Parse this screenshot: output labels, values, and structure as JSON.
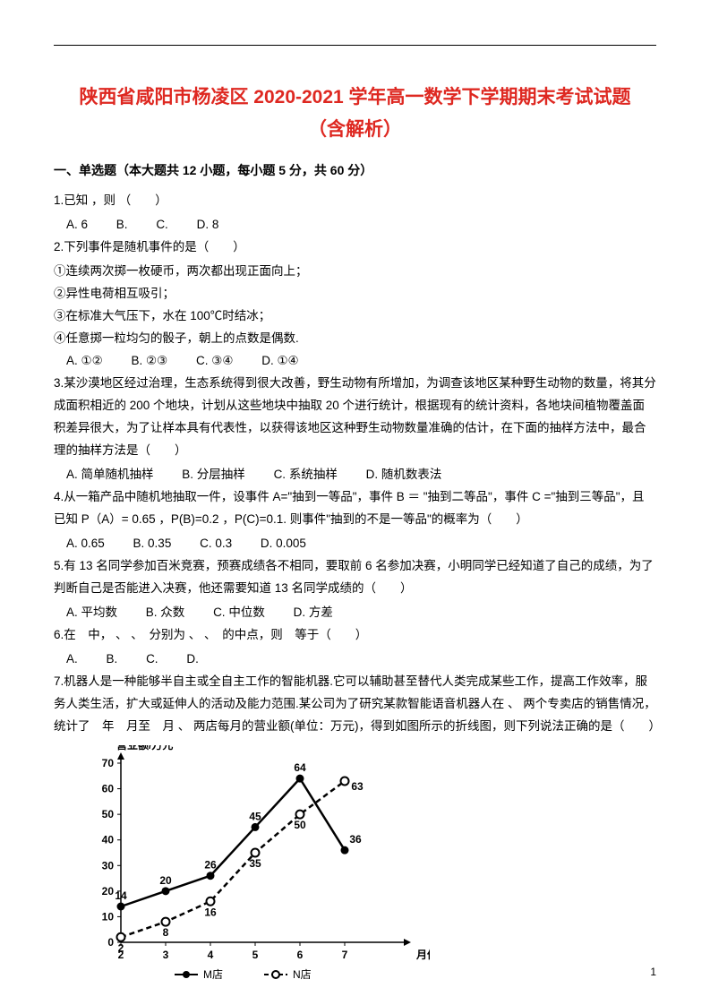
{
  "title_line1": "陕西省咸阳市杨凌区 2020-2021 学年高一数学下学期期末考试试题",
  "title_line2": "（含解析）",
  "section_header": "一、单选题（本大题共 12 小题，每小题 5 分，共 60 分）",
  "q1": {
    "text": "1.已知 ，则 （　　）",
    "optA": "A. 6",
    "optB": "B.",
    "optC": "C.",
    "optD": "D. 8"
  },
  "q2": {
    "text": "2.下列事件是随机事件的是（　　）",
    "item1": "①连续两次掷一枚硬币，两次都出现正面向上；",
    "item2": "②异性电荷相互吸引；",
    "item3": "③在标准大气压下，水在 100℃时结冰；",
    "item4": "④任意掷一粒均匀的骰子，朝上的点数是偶数.",
    "optA": "A. ①②",
    "optB": "B. ②③",
    "optC": "C. ③④",
    "optD": "D. ①④"
  },
  "q3": {
    "text": "3.某沙漠地区经过治理，生态系统得到很大改善，野生动物有所增加，为调查该地区某种野生动物的数量，将其分成面积相近的 200 个地块，计划从这些地块中抽取 20 个进行统计，根据现有的统计资料，各地块间植物覆盖面积差异很大，为了让样本具有代表性，以获得该地区这种野生动物数量准确的估计，在下面的抽样方法中，最合理的抽样方法是（　　）",
    "optA": "A. 简单随机抽样",
    "optB": "B. 分层抽样",
    "optC": "C. 系统抽样",
    "optD": "D. 随机数表法"
  },
  "q4": {
    "text": "4.从一箱产品中随机地抽取一件，设事件 A=\"抽到一等品\"，事件 B ＝ \"抽到二等品\"，事件 C =\"抽到三等品\"，且已知 P（A）= 0.65 ，P(B)=0.2 ，P(C)=0.1. 则事件\"抽到的不是一等品\"的概率为（　　）",
    "optA": "A. 0.65",
    "optB": "B. 0.35",
    "optC": "C. 0.3",
    "optD": "D. 0.005"
  },
  "q5": {
    "text": "5.有 13 名同学参加百米竞赛，预赛成绩各不相同，要取前 6 名参加决赛，小明同学已经知道了自己的成绩，为了判断自己是否能进入决赛，他还需要知道 13 名同学成绩的（　　）",
    "optA": "A. 平均数",
    "optB": "B. 众数",
    "optC": "C. 中位数",
    "optD": "D. 方差"
  },
  "q6": {
    "text": "6.在　中， 、 、　分别为 、 、　的中点，则　等于（　　）",
    "optA": "A.",
    "optB": "B.",
    "optC": "C.",
    "optD": "D."
  },
  "q7": {
    "text": "7.机器人是一种能够半自主或全自主工作的智能机器.它可以辅助甚至替代人类完成某些工作，提高工作效率，服务人类生活，扩大或延伸人的活动及能力范围.某公司为了研究某款智能语音机器人在 、 两个专卖店的销售情况，统计了　年　月至　月 、 两店每月的营业额(单位：万元)，得到如图所示的折线图，则下列说法正确的是（　　）"
  },
  "chart": {
    "y_label": "营业额/万元",
    "x_label": "月份",
    "x_ticks": [
      "2",
      "3",
      "4",
      "5",
      "6",
      "7"
    ],
    "y_ticks": [
      "0",
      "10",
      "20",
      "30",
      "40",
      "50",
      "60",
      "70"
    ],
    "series_m": {
      "name": "M店",
      "values": [
        14,
        20,
        26,
        45,
        64,
        36
      ],
      "labels": [
        "14",
        "20",
        "26",
        "45",
        "64",
        "36"
      ],
      "color": "#000000",
      "marker": "circle-filled",
      "line_style": "solid"
    },
    "series_n": {
      "name": "N店",
      "values": [
        2,
        8,
        16,
        35,
        50,
        63
      ],
      "labels": [
        "2",
        "8",
        "16",
        "35",
        "50",
        "63"
      ],
      "color": "#000000",
      "marker": "circle-open",
      "line_style": "dashed"
    },
    "legend_m": "M店",
    "legend_n": "N店",
    "ylim": [
      0,
      70
    ],
    "ytick_step": 10,
    "background_color": "#ffffff",
    "axis_color": "#000000",
    "line_width": 2.5,
    "font_size": 12,
    "label_font_weight": "bold"
  },
  "page_number": "1"
}
